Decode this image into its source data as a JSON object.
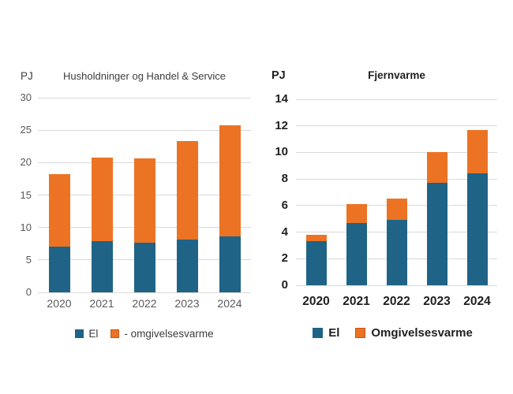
{
  "colors": {
    "el_blue": "#1f6387",
    "omgivelsesvarme_orange": "#ec7323",
    "orange_swatch_border": "#c2561a",
    "gridline": "#d9d9d9"
  },
  "chart_data": [
    {
      "type": "bar",
      "stacked": true,
      "title": "Husholdninger og Handel & Service",
      "unit_label": "PJ",
      "categories": [
        "2020",
        "2021",
        "2022",
        "2023",
        "2024"
      ],
      "series": [
        {
          "name": "El",
          "color": "#1f6387",
          "values": [
            7.0,
            7.9,
            7.6,
            8.1,
            8.6
          ]
        },
        {
          "name": "- omgivelsesvarme",
          "color": "#ec7323",
          "legend_border": "#c2561a",
          "values": [
            11.2,
            12.9,
            13.1,
            15.2,
            17.1
          ]
        }
      ],
      "totals": [
        18.2,
        20.8,
        20.7,
        23.3,
        25.7
      ],
      "ylim": [
        0,
        30
      ],
      "yticks": [
        0,
        5,
        10,
        15,
        20,
        25,
        30
      ],
      "grid": true,
      "legend_position": "bottom"
    },
    {
      "type": "bar",
      "stacked": true,
      "title": "Fjernvarme",
      "unit_label": "PJ",
      "categories": [
        "2020",
        "2021",
        "2022",
        "2023",
        "2024"
      ],
      "series": [
        {
          "name": "El",
          "color": "#1f6387",
          "values": [
            3.3,
            4.7,
            4.9,
            7.7,
            8.4
          ]
        },
        {
          "name": "Omgivelsesvarme",
          "color": "#ec7323",
          "legend_border": "#c2561a",
          "values": [
            0.5,
            1.4,
            1.6,
            2.3,
            3.3
          ]
        }
      ],
      "totals": [
        3.8,
        6.1,
        6.5,
        10.0,
        11.7
      ],
      "ylim": [
        0,
        14
      ],
      "yticks": [
        0,
        2,
        4,
        6,
        8,
        10,
        12,
        14
      ],
      "grid": true,
      "legend_position": "bottom"
    }
  ]
}
